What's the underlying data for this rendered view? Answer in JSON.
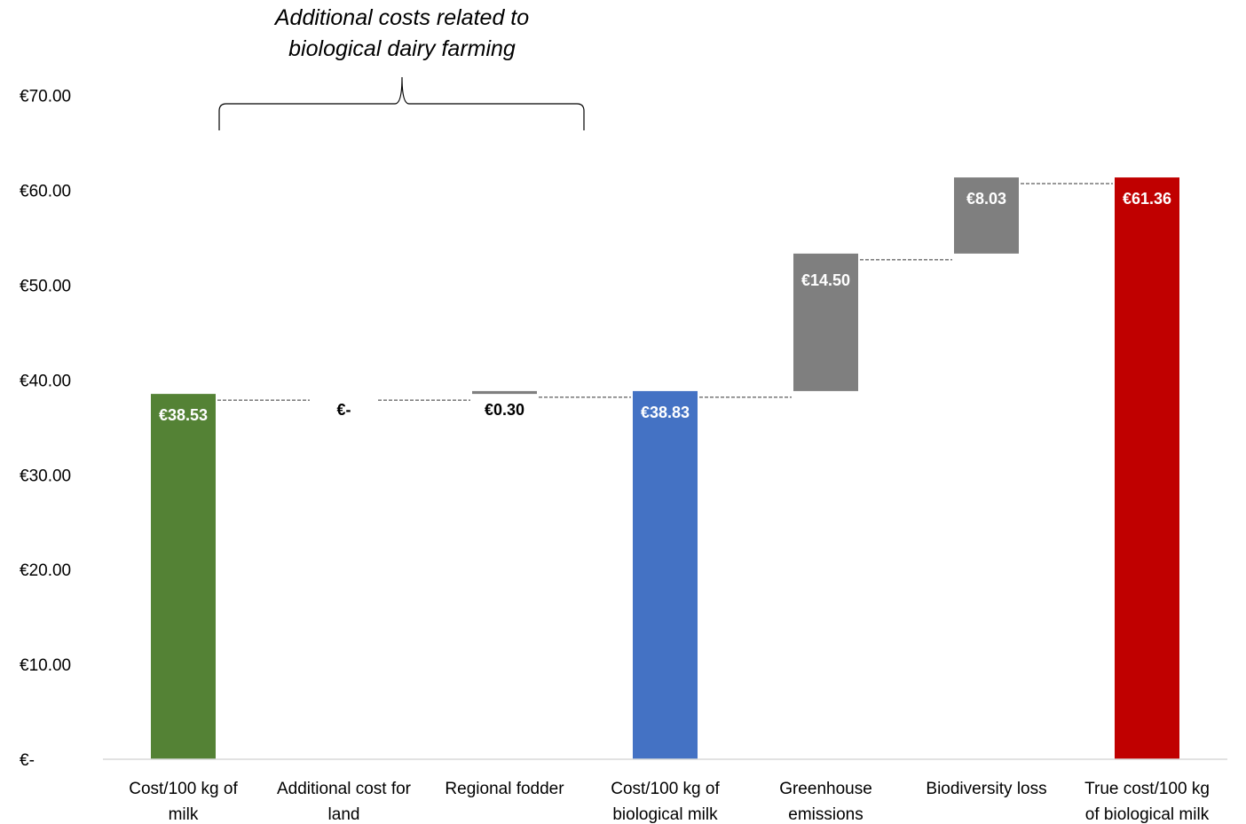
{
  "chart_data": {
    "type": "bar",
    "subtype": "waterfall",
    "annotation": {
      "lines": [
        "Additional costs related to",
        "biological dairy farming"
      ],
      "spans": [
        "Additional cost for land",
        "Regional fodder"
      ]
    },
    "categories": [
      [
        "Cost/100 kg of",
        "milk"
      ],
      [
        "Additional cost for",
        "land"
      ],
      [
        "Regional fodder"
      ],
      [
        "Cost/100 kg of",
        "biological milk"
      ],
      [
        "Greenhouse",
        "emissions"
      ],
      [
        "Biodiversity loss"
      ],
      [
        "True cost/100 kg",
        "of biological milk"
      ]
    ],
    "bars": [
      {
        "kind": "total",
        "base": 0,
        "value": 38.53,
        "label": "€38.53",
        "color": "#548235",
        "label_color": "#ffffff"
      },
      {
        "kind": "delta",
        "base": 38.53,
        "value": 0,
        "label": "€-",
        "color": "#7f7f7f",
        "label_color": "#000000"
      },
      {
        "kind": "delta",
        "base": 38.53,
        "value": 0.3,
        "label": "€0.30",
        "color": "#7f7f7f",
        "label_color": "#000000"
      },
      {
        "kind": "total",
        "base": 0,
        "value": 38.83,
        "label": "€38.83",
        "color": "#4472c4",
        "label_color": "#ffffff"
      },
      {
        "kind": "delta",
        "base": 38.83,
        "value": 14.5,
        "label": "€14.50",
        "color": "#7f7f7f",
        "label_color": "#ffffff"
      },
      {
        "kind": "delta",
        "base": 53.33,
        "value": 8.03,
        "label": "€8.03",
        "color": "#7f7f7f",
        "label_color": "#ffffff"
      },
      {
        "kind": "total",
        "base": 0,
        "value": 61.36,
        "label": "€61.36",
        "color": "#c00000",
        "label_color": "#ffffff"
      }
    ],
    "yticks": [
      0,
      10,
      20,
      30,
      40,
      50,
      60,
      70
    ],
    "ytick_labels": [
      "€-",
      "€10.00",
      "€20.00",
      "€30.00",
      "€40.00",
      "€50.00",
      "€60.00",
      "€70.00"
    ],
    "ylim": [
      0,
      70
    ],
    "grid": false,
    "legend": "none"
  }
}
